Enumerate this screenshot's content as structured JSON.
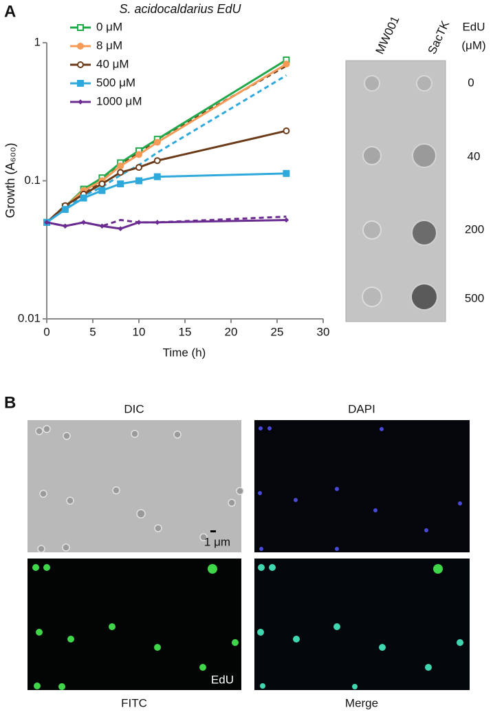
{
  "chart_data": {
    "type": "line",
    "title": "S. acidocaldarius EdU",
    "xlabel": "Time (h)",
    "ylabel": "Growth (A₆₀₀)",
    "x": [
      0,
      2,
      4,
      6,
      8,
      10,
      12,
      26
    ],
    "xlim": [
      0,
      30
    ],
    "xticks": [
      0,
      5,
      10,
      15,
      20,
      25,
      30
    ],
    "ylim": [
      0.01,
      1
    ],
    "yticks": [
      0.01,
      0.1,
      1
    ],
    "log_y": true,
    "legend": "top-left",
    "series": [
      {
        "name": "0 μM",
        "color": "#21a84a",
        "marker": "open-square",
        "values": [
          0.05,
          0.065,
          0.087,
          0.105,
          0.135,
          0.165,
          0.2,
          0.75
        ]
      },
      {
        "name": "8 μM",
        "color": "#f59a57",
        "marker": "filled-circle",
        "values": [
          0.05,
          0.065,
          0.085,
          0.1,
          0.128,
          0.155,
          0.19,
          0.7
        ]
      },
      {
        "name": "40 μM",
        "color": "#6b3a18",
        "marker": "open-circle",
        "values": [
          0.05,
          0.066,
          0.08,
          0.095,
          0.115,
          0.125,
          0.14,
          0.23
        ],
        "values_dashed": [
          0.05,
          0.066,
          0.08,
          0.1,
          0.13,
          0.16,
          0.2,
          0.68
        ]
      },
      {
        "name": "500 μM",
        "color": "#2fa8dc",
        "marker": "filled-square",
        "values": [
          0.05,
          0.062,
          0.075,
          0.085,
          0.095,
          0.1,
          0.107,
          0.113
        ],
        "values_dashed": [
          0.05,
          0.063,
          0.078,
          0.09,
          0.11,
          0.13,
          0.16,
          0.58
        ]
      },
      {
        "name": "1000 μM",
        "color": "#6a2c91",
        "marker": "diamond",
        "values": [
          0.05,
          0.047,
          0.05,
          0.047,
          0.045,
          0.05,
          0.05,
          0.052
        ],
        "values_dashed": [
          0.05,
          0.047,
          0.05,
          0.047,
          0.052,
          0.05,
          0.05,
          0.055
        ]
      }
    ]
  },
  "figure": {
    "panel_a": "A",
    "panel_b": "B",
    "blot": {
      "columns": [
        "MW001",
        "SacTK"
      ],
      "header": [
        "EdU",
        "(μM)"
      ],
      "rows": [
        "0",
        "40",
        "200",
        "500"
      ]
    },
    "microscopy": {
      "labels": [
        "DIC",
        "DAPI",
        "FITC",
        "Merge"
      ],
      "scale_bar": "1 μm",
      "stain": "EdU"
    }
  }
}
